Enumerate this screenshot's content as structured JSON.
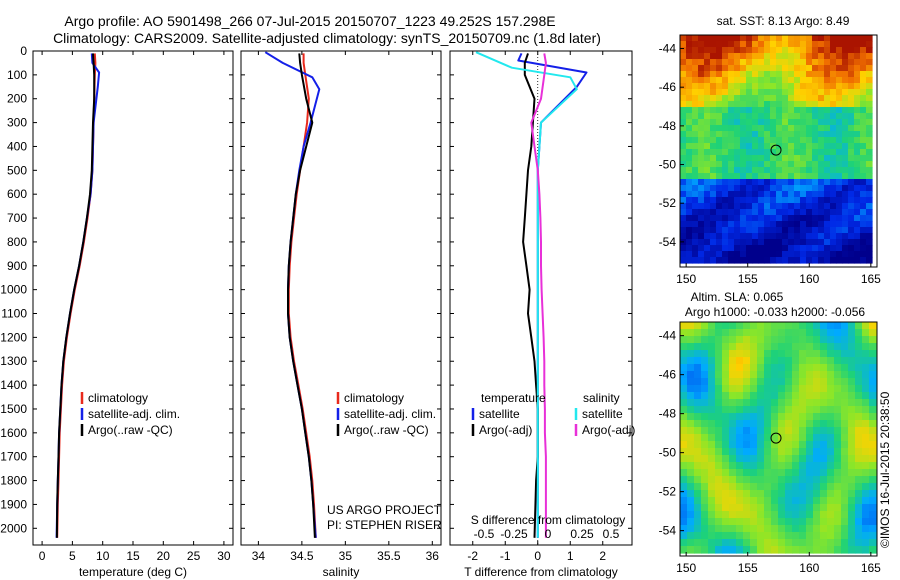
{
  "header": {
    "line1": "Argo profile: AO 5901498_266 07-Jul-2015 20150707_1223 49.252S 157.298E",
    "line2": "Climatology: CARS2009. Satellite-adjusted climatology: synTS_20150709.nc (1.8d later)"
  },
  "colors": {
    "climatology": "#e8291c",
    "satellite": "#1420e8",
    "argo": "#000000",
    "sat_sal": "#22e8ee",
    "argo_sal": "#e830d8"
  },
  "chart_data": [
    {
      "id": "temperature",
      "type": "line",
      "xlabel": "temperature (deg C)",
      "ylim": [
        2070,
        0
      ],
      "xlim": [
        -1.5,
        31.5
      ],
      "xticks": [
        0,
        5,
        10,
        15,
        20,
        25,
        30
      ],
      "yticks": [
        0,
        100,
        200,
        300,
        400,
        500,
        600,
        700,
        800,
        900,
        1000,
        1100,
        1200,
        1300,
        1400,
        1500,
        1600,
        1700,
        1800,
        1900,
        2000
      ],
      "legend": [
        "climatology",
        "satellite-adj. clim.",
        "Argo(..raw -QC)"
      ],
      "series": [
        {
          "name": "climatology",
          "color": "#e8291c",
          "x": [
            8.7,
            8.8,
            8.7,
            8.6,
            8.5,
            8.4,
            8.3,
            8.0,
            7.5,
            6.9,
            6.2,
            5.4,
            4.7,
            4.1,
            3.6,
            3.3,
            3.1,
            2.9,
            2.8,
            2.7,
            2.6,
            2.5
          ],
          "y": [
            10,
            50,
            100,
            200,
            300,
            400,
            500,
            600,
            700,
            800,
            900,
            1000,
            1100,
            1200,
            1300,
            1400,
            1500,
            1600,
            1700,
            1800,
            1900,
            2040
          ]
        },
        {
          "name": "satellite-adj. clim.",
          "color": "#1420e8",
          "x": [
            8.2,
            8.3,
            9.4,
            9.2,
            8.5,
            8.4,
            8.3,
            8.0,
            7.4,
            6.8,
            6.1,
            5.3,
            4.6,
            4.0,
            3.5,
            3.2,
            3.0,
            2.8,
            2.7,
            2.6,
            2.5,
            2.4
          ],
          "y": [
            10,
            50,
            90,
            150,
            300,
            400,
            500,
            600,
            700,
            800,
            900,
            1000,
            1100,
            1200,
            1300,
            1400,
            1500,
            1600,
            1700,
            1800,
            1900,
            2040
          ]
        },
        {
          "name": "Argo(..raw -QC)",
          "color": "#000000",
          "x": [
            8.4,
            8.5,
            8.6,
            8.6,
            8.4,
            8.3,
            8.2,
            7.9,
            7.4,
            6.8,
            6.1,
            5.3,
            4.6,
            4.0,
            3.5,
            3.2,
            3.0,
            2.8,
            2.7,
            2.6,
            2.5,
            2.45
          ],
          "y": [
            10,
            50,
            100,
            200,
            300,
            400,
            500,
            600,
            700,
            800,
            900,
            1000,
            1100,
            1200,
            1300,
            1400,
            1500,
            1600,
            1700,
            1800,
            1900,
            2040
          ]
        }
      ]
    },
    {
      "id": "salinity",
      "type": "line",
      "xlabel": "salinity",
      "ylim": [
        2070,
        0
      ],
      "xlim": [
        33.8,
        36.1
      ],
      "xticks": [
        34,
        34.5,
        35,
        35.5,
        36
      ],
      "legend": [
        "climatology",
        "satellite-adj. clim.",
        "Argo(..raw -QC)"
      ],
      "annotation": [
        "US ARGO PROJECT",
        "PI: STEPHEN RISER"
      ],
      "series": [
        {
          "name": "climatology",
          "color": "#e8291c",
          "x": [
            34.52,
            34.52,
            34.54,
            34.58,
            34.56,
            34.52,
            34.48,
            34.44,
            34.41,
            34.38,
            34.36,
            34.35,
            34.35,
            34.37,
            34.41,
            34.46,
            34.51,
            34.55,
            34.59,
            34.62,
            34.64,
            34.66
          ],
          "y": [
            10,
            50,
            100,
            200,
            300,
            400,
            500,
            600,
            700,
            800,
            900,
            1000,
            1100,
            1200,
            1300,
            1400,
            1500,
            1600,
            1700,
            1800,
            1900,
            2040
          ]
        },
        {
          "name": "satellite-adj. clim.",
          "color": "#1420e8",
          "x": [
            34.08,
            34.28,
            34.62,
            34.7,
            34.6,
            34.52,
            34.47,
            34.43,
            34.4,
            34.37,
            34.35,
            34.34,
            34.34,
            34.36,
            34.4,
            34.45,
            34.5,
            34.54,
            34.58,
            34.61,
            34.63,
            34.66
          ],
          "y": [
            5,
            50,
            110,
            160,
            300,
            400,
            500,
            600,
            700,
            800,
            900,
            1000,
            1100,
            1200,
            1300,
            1400,
            1500,
            1600,
            1700,
            1800,
            1900,
            2040
          ]
        },
        {
          "name": "Argo(..raw -QC)",
          "color": "#000000",
          "x": [
            34.47,
            34.48,
            34.5,
            34.55,
            34.62,
            34.55,
            34.48,
            34.43,
            34.4,
            34.37,
            34.35,
            34.34,
            34.34,
            34.36,
            34.4,
            34.45,
            34.5,
            34.54,
            34.58,
            34.61,
            34.63,
            34.65
          ],
          "y": [
            10,
            50,
            100,
            200,
            300,
            400,
            500,
            600,
            700,
            800,
            900,
            1000,
            1100,
            1200,
            1300,
            1400,
            1500,
            1600,
            1700,
            1800,
            1900,
            2040
          ]
        }
      ]
    },
    {
      "id": "difference",
      "type": "line",
      "xlabel": "T difference from climatology",
      "xlabel2": "S difference from climatology",
      "ylim": [
        2070,
        0
      ],
      "xlim": [
        -2.7,
        2.9
      ],
      "xticks": [
        -2,
        -1,
        0,
        1,
        2
      ],
      "xticks2": [
        "-0.5",
        "-0.25",
        "0",
        "0.25",
        "0.5"
      ],
      "legend_titles": [
        "temperature",
        "salinity"
      ],
      "legend": [
        "satellite",
        "Argo(-adj)",
        "satellite",
        "Argo(-adj)"
      ],
      "series": [
        {
          "name": "satellite",
          "group": "temperature",
          "color": "#1420e8",
          "x": [
            -0.5,
            -0.6,
            1.5,
            1.2,
            0.1,
            0.05,
            0.0,
            0.0,
            0.0,
            0.0,
            0.0,
            0.0,
            0.0,
            0.0,
            0.0,
            0.0,
            0.0,
            0.0,
            0.0,
            0.0,
            0.0
          ],
          "y": [
            10,
            40,
            90,
            150,
            300,
            400,
            500,
            600,
            700,
            800,
            900,
            1000,
            1100,
            1200,
            1300,
            1400,
            1500,
            1600,
            1700,
            1800,
            2040
          ]
        },
        {
          "name": "Argo(-adj)",
          "group": "temperature",
          "color": "#000000",
          "x": [
            -0.3,
            -0.4,
            -0.4,
            -0.1,
            -0.15,
            -0.2,
            -0.3,
            -0.35,
            -0.4,
            -0.45,
            -0.35,
            -0.25,
            -0.3,
            -0.2,
            -0.1,
            -0.05,
            0.0,
            0.0,
            0.0,
            -0.05,
            -0.1
          ],
          "y": [
            10,
            50,
            100,
            200,
            300,
            400,
            500,
            600,
            700,
            800,
            900,
            1000,
            1100,
            1200,
            1300,
            1400,
            1500,
            1600,
            1700,
            1800,
            2040
          ]
        },
        {
          "name": "satellite",
          "group": "salinity",
          "color": "#22e8ee",
          "x": [
            -1.9,
            -0.8,
            1.0,
            1.2,
            0.1,
            0.05,
            0.0,
            0.0,
            0.0,
            0.0,
            0.0,
            0.0,
            0.0,
            0.0,
            0.0,
            0.0,
            0.0,
            0.0,
            0.0,
            0.0
          ],
          "y": [
            5,
            70,
            110,
            160,
            300,
            400,
            500,
            600,
            700,
            800,
            900,
            1000,
            1100,
            1200,
            1300,
            1400,
            1500,
            1600,
            1700,
            2040
          ]
        },
        {
          "name": "Argo(-adj)",
          "group": "salinity",
          "color": "#e830d8",
          "x": [
            0.2,
            0.25,
            0.2,
            0.1,
            -0.2,
            -0.1,
            0.0,
            0.05,
            0.08,
            0.1,
            0.1,
            0.12,
            0.15,
            0.18,
            0.2,
            0.2,
            0.22,
            0.22,
            0.25,
            0.25,
            0.25
          ],
          "y": [
            10,
            50,
            100,
            200,
            300,
            400,
            500,
            600,
            700,
            800,
            900,
            1000,
            1100,
            1200,
            1300,
            1400,
            1500,
            1600,
            1700,
            1800,
            2040
          ]
        }
      ]
    },
    {
      "id": "sst_map",
      "type": "heatmap",
      "title": "sat. SST: 8.13 Argo: 8.49",
      "xlim": [
        149.5,
        165.5
      ],
      "ylim": [
        -55.3,
        -43.3
      ],
      "xticks": [
        150,
        155,
        160,
        165
      ],
      "yticks": [
        -44,
        -46,
        -48,
        -50,
        -52,
        -54
      ],
      "marker": {
        "lon": 157.298,
        "lat": -49.252
      }
    },
    {
      "id": "sla_map",
      "type": "heatmap",
      "title": "Altim. SLA: 0.065",
      "subtitle": "Argo h1000: -0.033 h2000: -0.056",
      "xlim": [
        149.5,
        165.5
      ],
      "ylim": [
        -55.3,
        -43.3
      ],
      "xticks": [
        150,
        155,
        160,
        165
      ],
      "yticks": [
        -44,
        -46,
        -48,
        -50,
        -52,
        -54
      ],
      "marker": {
        "lon": 157.298,
        "lat": -49.252
      }
    }
  ],
  "footer": {
    "credit": "©IMOS 16-Jul-2015 20:38:50"
  }
}
